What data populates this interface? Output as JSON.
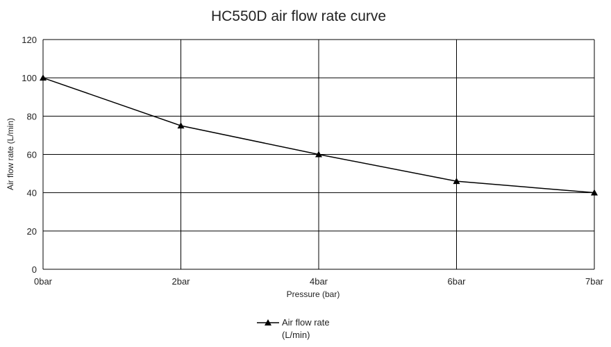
{
  "chart_data": {
    "type": "line",
    "title": "HC550D air flow rate curve",
    "xlabel": "Pressure (bar)",
    "ylabel": "Air flow rate (L/min)",
    "categories": [
      "0bar",
      "2bar",
      "4bar",
      "6bar",
      "7bar"
    ],
    "ylim": [
      0,
      120
    ],
    "yticks": [
      "0",
      "20",
      "40",
      "60",
      "80",
      "100",
      "120"
    ],
    "grid": true,
    "legend_position": "bottom",
    "series": [
      {
        "name": "Air flow rate (L/min)",
        "legend_lines": [
          "Air flow rate",
          "(L/min)"
        ],
        "marker": "triangle",
        "color": "#000000",
        "values": [
          100,
          75,
          60,
          46,
          40
        ]
      }
    ]
  }
}
